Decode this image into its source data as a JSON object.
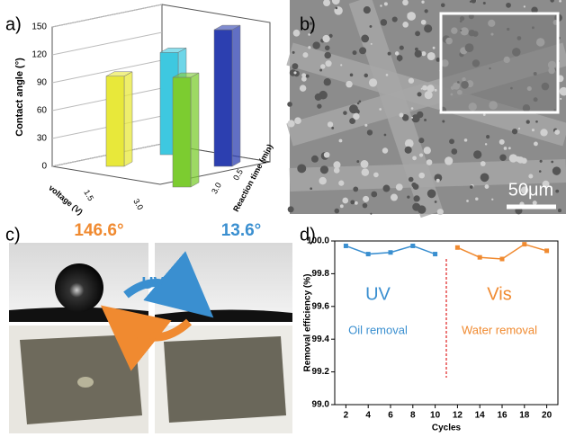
{
  "panel_labels": [
    "a)",
    "b)",
    "c)",
    "d)"
  ],
  "chart_data": [
    {
      "type": "bar3d",
      "ylabel": "Contact angle (°)",
      "xlabel": "voltage (V)",
      "zlabel": "Reaction time (min)",
      "xticks": [
        1.5,
        {
          "value": 3,
          "label": "3.0"
        }
      ],
      "zticks": [
        0.5,
        {
          "value": 3,
          "label": "3.0"
        }
      ],
      "ylim": [
        0,
        150
      ],
      "yticks": [
        0,
        30,
        60,
        90,
        120,
        150
      ],
      "values": [
        97,
        110,
        118,
        147
      ],
      "colors": [
        "#e8e83a",
        "#3ec8e0",
        "#7ccc30",
        "#2c3fb0"
      ]
    },
    {
      "type": "line",
      "xlabel": "Cycles",
      "ylabel": "Removal efficiency (%)",
      "xlim": [
        1,
        21
      ],
      "xticks": [
        2,
        4,
        6,
        8,
        10,
        12,
        14,
        16,
        18,
        20
      ],
      "ylim": [
        99,
        100
      ],
      "yticks": [
        {
          "value": 99,
          "label": "99.0"
        },
        99.2,
        99.4,
        99.6,
        99.8,
        {
          "value": 100,
          "label": "100.0"
        }
      ],
      "series": [
        {
          "name": "UV",
          "color": "#3a8fd0",
          "note": "Oil removal",
          "x": [
            2,
            4,
            6,
            8,
            10
          ],
          "values": [
            99.97,
            99.92,
            99.93,
            99.97,
            99.92
          ]
        },
        {
          "name": "Vis",
          "color": "#f08a30",
          "note": "Water removal",
          "x": [
            12,
            14,
            16,
            18,
            20
          ],
          "values": [
            99.96,
            99.9,
            99.89,
            99.98,
            99.94
          ]
        }
      ],
      "divider_x": 11,
      "divider_color": "#e02020"
    }
  ],
  "sem_image": {
    "scale_bar": "50μm"
  },
  "photos": {
    "angle_before": "146.6°",
    "angle_after": "13.6°",
    "uv": "UV",
    "vis": "Vis"
  }
}
